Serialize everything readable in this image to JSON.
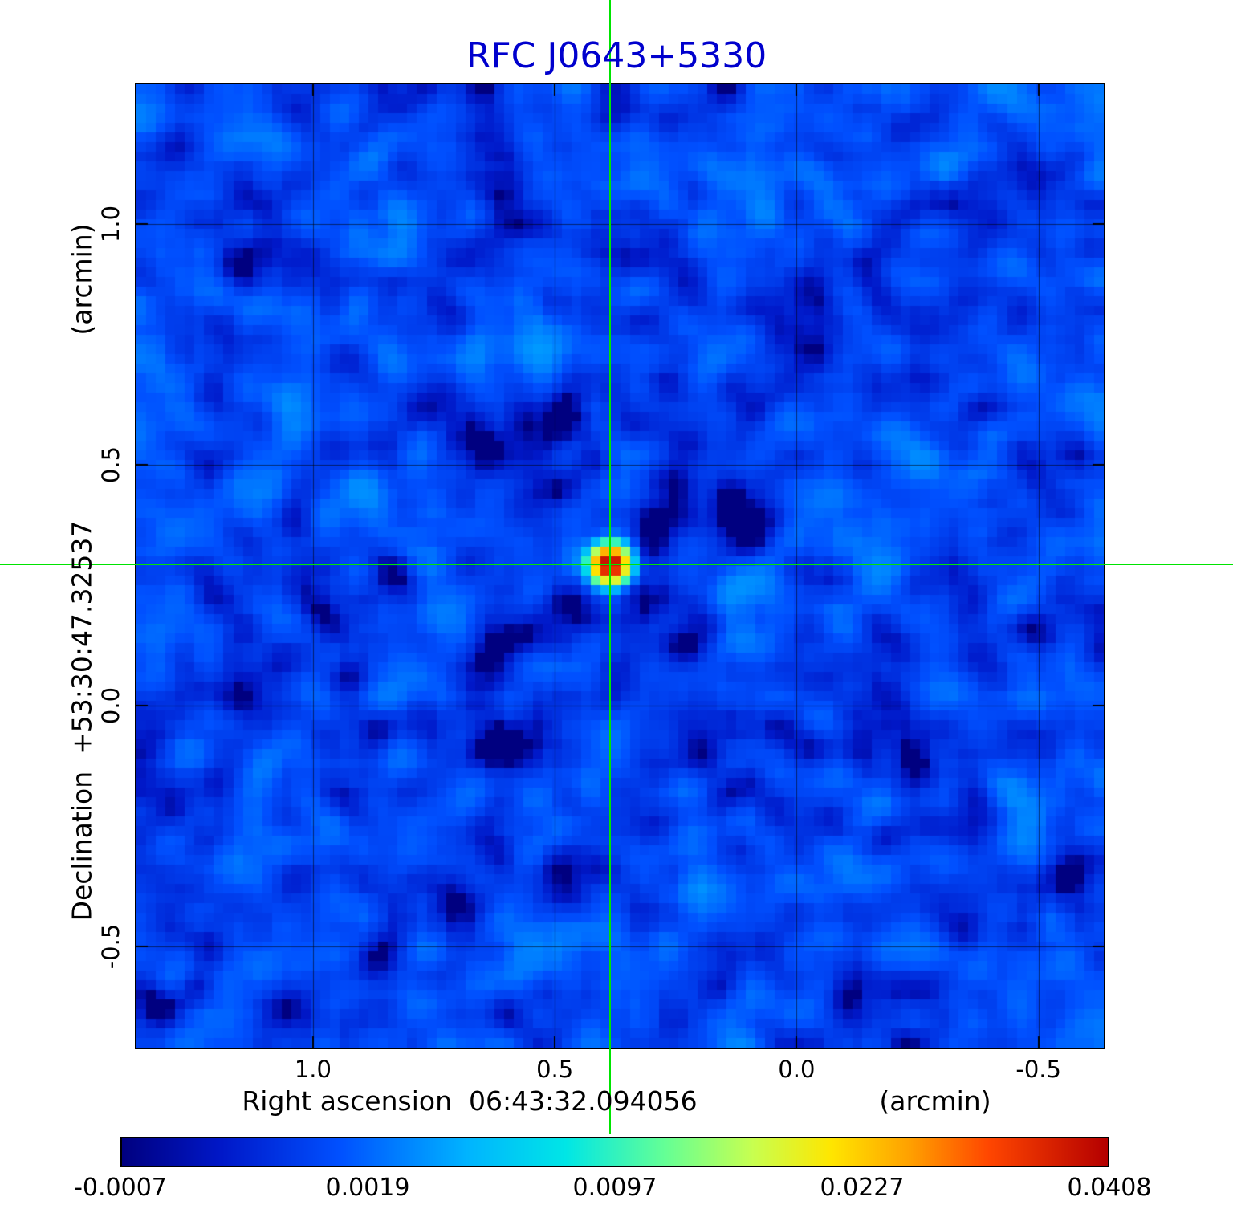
{
  "title": "RFC J0643+5330",
  "title_color": "#0000cd",
  "axes": {
    "x_label": "Right ascension  06:43:32.094056",
    "x_unit": "(arcmin)",
    "y_label": "Declination  +53:30:47.32537",
    "y_unit": "(arcmin)",
    "x_ticks": [
      "1.0",
      "0.5",
      "0.0",
      "-0.5"
    ],
    "y_ticks": [
      "1.0",
      "0.5",
      "0.0",
      "-0.5"
    ]
  },
  "colorbar": {
    "ticks": [
      "-0.0007",
      "0.0019",
      "0.0097",
      "0.0227",
      "0.0408"
    ]
  },
  "chart_data": {
    "type": "heatmap",
    "title": "RFC J0643+5330",
    "xlabel": "Right ascension 06:43:32.094056 (arcmin)",
    "ylabel": "Declination +53:30:47.32537 (arcmin)",
    "x_range": [
      1.365,
      -0.635
    ],
    "y_range": [
      -0.71,
      1.29
    ],
    "x_ticks": [
      1.0,
      0.5,
      0.0,
      -0.5
    ],
    "y_ticks": [
      1.0,
      0.5,
      0.0,
      -0.5
    ],
    "grid": true,
    "value_min": -0.0007,
    "value_max": 0.0408,
    "value_scale": "power2",
    "colorbar_ticks": [
      -0.0007,
      0.0019,
      0.0097,
      0.0227,
      0.0408
    ],
    "colormap_stops": [
      [
        0.0,
        "#000080"
      ],
      [
        0.1,
        "#0018c8"
      ],
      [
        0.22,
        "#0050ff"
      ],
      [
        0.35,
        "#00b4ff"
      ],
      [
        0.45,
        "#00e6e6"
      ],
      [
        0.55,
        "#64ff96"
      ],
      [
        0.64,
        "#c8ff50"
      ],
      [
        0.72,
        "#ffe600"
      ],
      [
        0.8,
        "#ffa000"
      ],
      [
        0.88,
        "#ff4600"
      ],
      [
        1.0,
        "#b40000"
      ]
    ],
    "source": {
      "x_arcmin": 0.386,
      "y_arcmin": 0.293,
      "peak_value": 0.0408,
      "sigma_cells": 1.35
    },
    "crosshair": {
      "x_arcmin": 0.386,
      "y_arcmin": 0.293,
      "color": "#00e400"
    },
    "noise": {
      "mean": 0.0009,
      "std": 0.00055,
      "cells": 100,
      "seed": 42
    },
    "sidelobes": {
      "diagonal_amplitude": -0.0014,
      "diagonal_width_cells": 1.7,
      "ripple_amplitude": 0.0005
    }
  }
}
